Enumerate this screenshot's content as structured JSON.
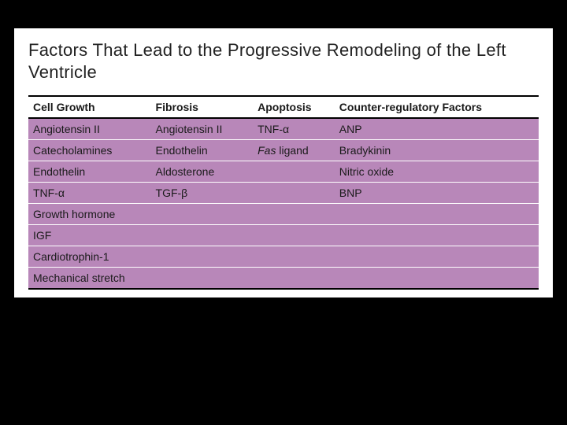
{
  "title": "Factors That Lead to the Progressive Remodeling of the Left Ventricle",
  "table": {
    "headers": [
      "Cell Growth",
      "Fibrosis",
      "Apoptosis",
      "Counter-regulatory Factors"
    ],
    "rows": [
      [
        "Angiotensin II",
        "Angiotensin II",
        "TNF-α",
        "ANP"
      ],
      [
        "Catecholamines",
        "Endothelin",
        "Fas ligand",
        "Bradykinin"
      ],
      [
        "Endothelin",
        "Aldosterone",
        "",
        "Nitric oxide"
      ],
      [
        "TNF-α",
        "TGF-β",
        "",
        "BNP"
      ],
      [
        "Growth hormone",
        "",
        "",
        ""
      ],
      [
        "IGF",
        "",
        "",
        ""
      ],
      [
        "Cardiotrophin-1",
        "",
        "",
        ""
      ],
      [
        "Mechanical stretch",
        "",
        "",
        ""
      ]
    ],
    "column_widths_pct": [
      24,
      20,
      16,
      40
    ],
    "cell_bg": "#b887b9",
    "header_bg": "#ffffff",
    "border_color": "#ffffff",
    "outer_border_color": "#000000",
    "italic_cells": [
      [
        1,
        2,
        "Fas"
      ]
    ]
  },
  "colors": {
    "page_bg": "#000000",
    "slide_bg": "#ffffff",
    "text": "#1a1a1a"
  },
  "fonts": {
    "title_size_pt": 22,
    "cell_size_pt": 14,
    "family": "Tahoma"
  }
}
